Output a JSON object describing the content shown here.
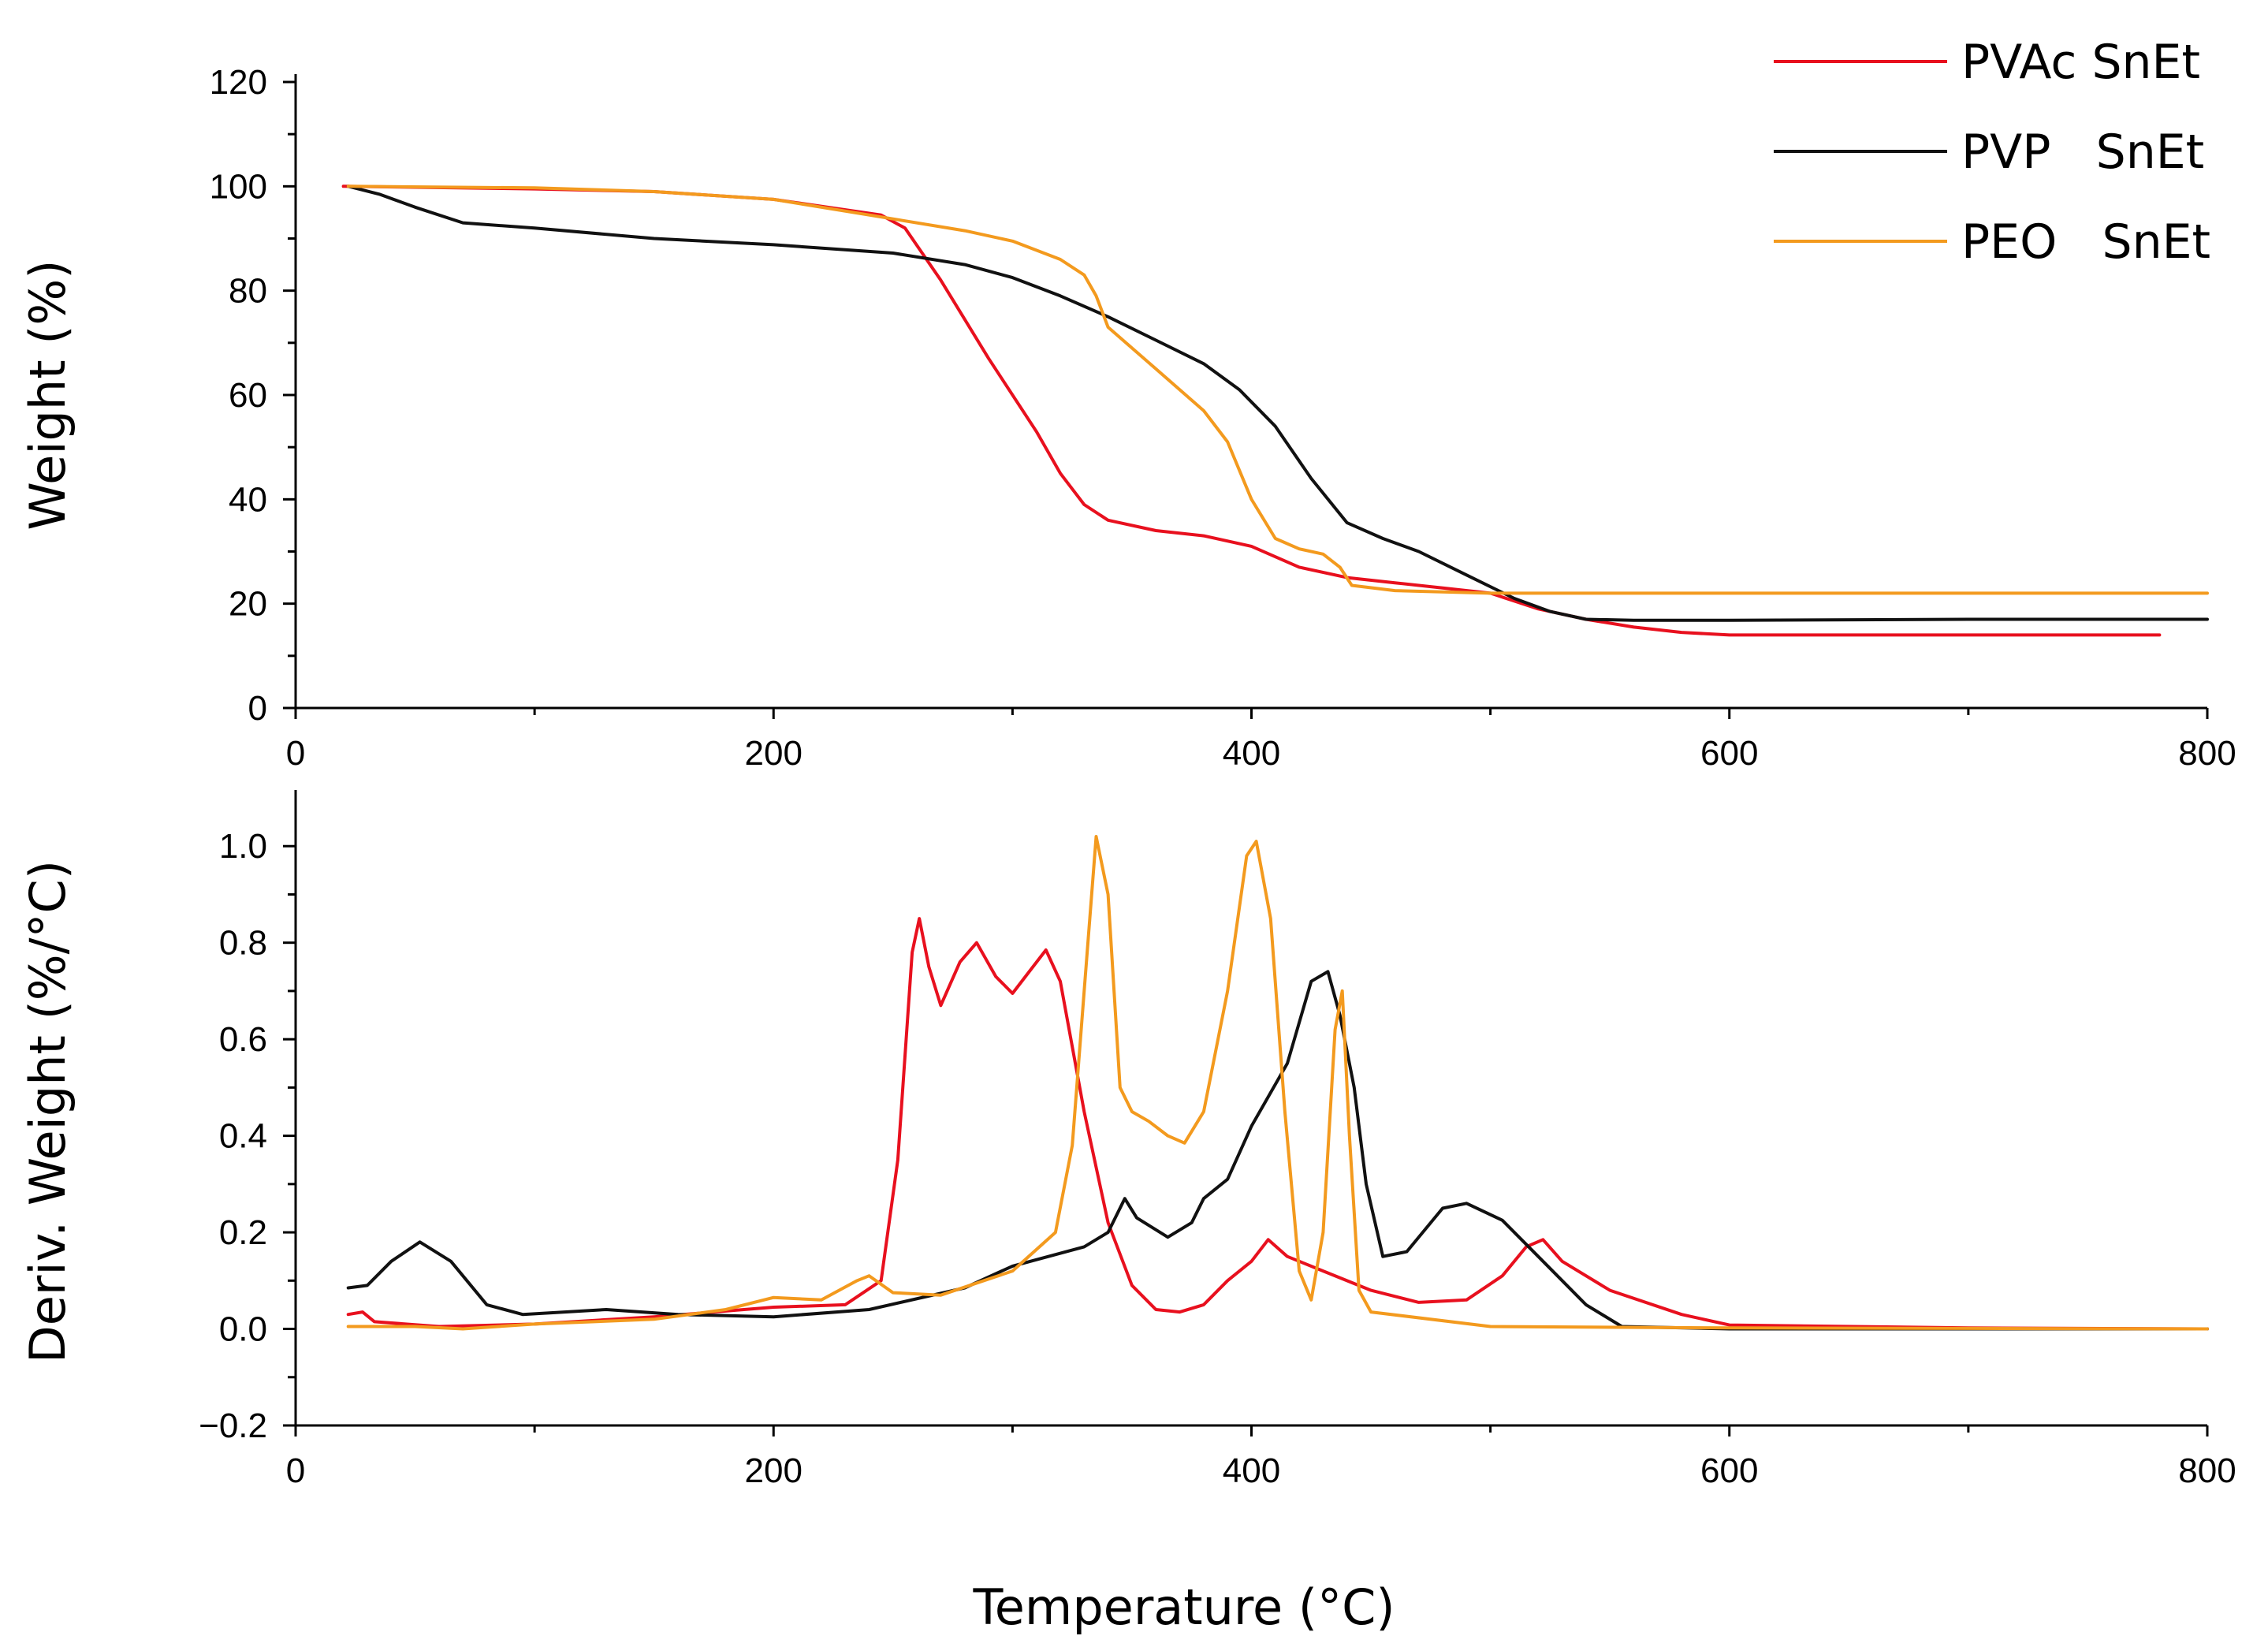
{
  "chart_data": {
    "type": "line",
    "xlabel": "Temperature (°C)",
    "legend": {
      "placement": "top-right",
      "entries": [
        {
          "label": "PVAc SnEt",
          "color": "#e8101e"
        },
        {
          "label": "PVP   SnEt",
          "color": "#111111"
        },
        {
          "label": "PEO   SnEt",
          "color": "#f39a1e"
        }
      ]
    },
    "panels": [
      {
        "ylabel": "Weight (%)",
        "xlim": [
          0,
          800
        ],
        "ylim": [
          0,
          120
        ],
        "xticks": [
          0,
          200,
          400,
          600,
          800
        ],
        "yticks": [
          0,
          20,
          40,
          60,
          80,
          100,
          120
        ],
        "ytick_labels": [
          "0",
          "20",
          "40",
          "60",
          "80",
          "100",
          "120"
        ],
        "series": [
          {
            "name": "PVAc SnEt",
            "color": "#e8101e",
            "points": [
              [
                20,
                100
              ],
              [
                100,
                99.5
              ],
              [
                150,
                99
              ],
              [
                200,
                97.5
              ],
              [
                245,
                94.5
              ],
              [
                255,
                92
              ],
              [
                270,
                82
              ],
              [
                290,
                67
              ],
              [
                310,
                53
              ],
              [
                320,
                45
              ],
              [
                330,
                39
              ],
              [
                340,
                36
              ],
              [
                360,
                34
              ],
              [
                380,
                33
              ],
              [
                400,
                31
              ],
              [
                420,
                27
              ],
              [
                440,
                25
              ],
              [
                460,
                24
              ],
              [
                480,
                23
              ],
              [
                500,
                22
              ],
              [
                520,
                19
              ],
              [
                540,
                17
              ],
              [
                560,
                15.5
              ],
              [
                580,
                14.5
              ],
              [
                600,
                14
              ],
              [
                700,
                14
              ],
              [
                780,
                14
              ]
            ]
          },
          {
            "name": "PVP   SnEt",
            "color": "#111111",
            "points": [
              [
                22,
                100
              ],
              [
                35,
                98.5
              ],
              [
                50,
                96
              ],
              [
                70,
                93
              ],
              [
                100,
                92
              ],
              [
                150,
                90
              ],
              [
                200,
                88.8
              ],
              [
                250,
                87.2
              ],
              [
                280,
                85
              ],
              [
                300,
                82.5
              ],
              [
                320,
                79
              ],
              [
                340,
                75
              ],
              [
                360,
                70.5
              ],
              [
                380,
                66
              ],
              [
                395,
                61
              ],
              [
                410,
                54
              ],
              [
                425,
                44
              ],
              [
                440,
                35.5
              ],
              [
                455,
                32.5
              ],
              [
                470,
                30
              ],
              [
                490,
                25.5
              ],
              [
                510,
                21
              ],
              [
                525,
                18.5
              ],
              [
                540,
                17
              ],
              [
                560,
                16.8
              ],
              [
                600,
                16.8
              ],
              [
                700,
                17
              ],
              [
                800,
                17
              ]
            ]
          },
          {
            "name": "PEO   SnEt",
            "color": "#f39a1e",
            "points": [
              [
                22,
                100
              ],
              [
                100,
                99.7
              ],
              [
                150,
                99
              ],
              [
                200,
                97.5
              ],
              [
                240,
                94.5
              ],
              [
                280,
                91.5
              ],
              [
                300,
                89.5
              ],
              [
                320,
                86
              ],
              [
                330,
                83
              ],
              [
                335,
                79
              ],
              [
                340,
                73
              ],
              [
                360,
                65
              ],
              [
                380,
                57
              ],
              [
                390,
                51
              ],
              [
                400,
                40
              ],
              [
                410,
                32.5
              ],
              [
                420,
                30.5
              ],
              [
                430,
                29.5
              ],
              [
                437,
                27
              ],
              [
                442,
                23.5
              ],
              [
                460,
                22.5
              ],
              [
                500,
                22
              ],
              [
                600,
                22
              ],
              [
                700,
                22
              ],
              [
                800,
                22
              ]
            ]
          }
        ]
      },
      {
        "ylabel": "Deriv. Weight (%/°C)",
        "xlim": [
          0,
          800
        ],
        "ylim": [
          -0.2,
          1.1
        ],
        "xticks": [
          0,
          200,
          400,
          600,
          800
        ],
        "yticks": [
          -0.2,
          0,
          0.2,
          0.4,
          0.6,
          0.8,
          1.0
        ],
        "ytick_labels": [
          "−0.2",
          "0.0",
          "0.2",
          "0.4",
          "0.6",
          "0.8",
          "1.0"
        ],
        "series": [
          {
            "name": "PVAc SnEt",
            "color": "#e8101e",
            "points": [
              [
                22,
                0.03
              ],
              [
                28,
                0.035
              ],
              [
                33,
                0.015
              ],
              [
                60,
                0.005
              ],
              [
                100,
                0.01
              ],
              [
                150,
                0.025
              ],
              [
                200,
                0.045
              ],
              [
                230,
                0.05
              ],
              [
                245,
                0.1
              ],
              [
                252,
                0.35
              ],
              [
                258,
                0.78
              ],
              [
                261,
                0.85
              ],
              [
                265,
                0.75
              ],
              [
                270,
                0.67
              ],
              [
                278,
                0.76
              ],
              [
                285,
                0.8
              ],
              [
                293,
                0.73
              ],
              [
                300,
                0.695
              ],
              [
                307,
                0.74
              ],
              [
                314,
                0.785
              ],
              [
                320,
                0.72
              ],
              [
                330,
                0.45
              ],
              [
                340,
                0.22
              ],
              [
                350,
                0.09
              ],
              [
                360,
                0.04
              ],
              [
                370,
                0.035
              ],
              [
                380,
                0.05
              ],
              [
                390,
                0.1
              ],
              [
                400,
                0.14
              ],
              [
                407,
                0.185
              ],
              [
                415,
                0.15
              ],
              [
                430,
                0.12
              ],
              [
                450,
                0.08
              ],
              [
                470,
                0.055
              ],
              [
                490,
                0.06
              ],
              [
                505,
                0.11
              ],
              [
                515,
                0.17
              ],
              [
                522,
                0.185
              ],
              [
                530,
                0.14
              ],
              [
                550,
                0.08
              ],
              [
                580,
                0.03
              ],
              [
                600,
                0.008
              ],
              [
                700,
                0.002
              ],
              [
                800,
                0
              ]
            ]
          },
          {
            "name": "PVP   SnEt",
            "color": "#111111",
            "points": [
              [
                22,
                0.085
              ],
              [
                30,
                0.09
              ],
              [
                40,
                0.14
              ],
              [
                52,
                0.18
              ],
              [
                65,
                0.14
              ],
              [
                80,
                0.05
              ],
              [
                95,
                0.03
              ],
              [
                130,
                0.04
              ],
              [
                160,
                0.03
              ],
              [
                200,
                0.025
              ],
              [
                240,
                0.04
              ],
              [
                280,
                0.085
              ],
              [
                300,
                0.13
              ],
              [
                330,
                0.17
              ],
              [
                340,
                0.2
              ],
              [
                347,
                0.27
              ],
              [
                352,
                0.23
              ],
              [
                365,
                0.19
              ],
              [
                375,
                0.22
              ],
              [
                380,
                0.27
              ],
              [
                390,
                0.31
              ],
              [
                400,
                0.42
              ],
              [
                415,
                0.55
              ],
              [
                425,
                0.72
              ],
              [
                432,
                0.74
              ],
              [
                437,
                0.65
              ],
              [
                443,
                0.5
              ],
              [
                448,
                0.3
              ],
              [
                455,
                0.15
              ],
              [
                465,
                0.16
              ],
              [
                480,
                0.25
              ],
              [
                490,
                0.26
              ],
              [
                505,
                0.225
              ],
              [
                520,
                0.15
              ],
              [
                540,
                0.05
              ],
              [
                555,
                0.005
              ],
              [
                600,
                0
              ],
              [
                800,
                0
              ]
            ]
          },
          {
            "name": "PEO   SnEt",
            "color": "#f39a1e",
            "points": [
              [
                22,
                0.005
              ],
              [
                50,
                0.005
              ],
              [
                70,
                0
              ],
              [
                100,
                0.01
              ],
              [
                150,
                0.02
              ],
              [
                180,
                0.04
              ],
              [
                200,
                0.065
              ],
              [
                220,
                0.06
              ],
              [
                235,
                0.1
              ],
              [
                240,
                0.11
              ],
              [
                250,
                0.075
              ],
              [
                270,
                0.07
              ],
              [
                300,
                0.12
              ],
              [
                318,
                0.2
              ],
              [
                325,
                0.38
              ],
              [
                330,
                0.7
              ],
              [
                335,
                1.02
              ],
              [
                340,
                0.9
              ],
              [
                345,
                0.5
              ],
              [
                350,
                0.45
              ],
              [
                357,
                0.43
              ],
              [
                365,
                0.4
              ],
              [
                372,
                0.385
              ],
              [
                380,
                0.45
              ],
              [
                390,
                0.7
              ],
              [
                398,
                0.98
              ],
              [
                402,
                1.01
              ],
              [
                408,
                0.85
              ],
              [
                414,
                0.45
              ],
              [
                420,
                0.12
              ],
              [
                425,
                0.06
              ],
              [
                430,
                0.2
              ],
              [
                435,
                0.62
              ],
              [
                438,
                0.7
              ],
              [
                441,
                0.4
              ],
              [
                445,
                0.08
              ],
              [
                450,
                0.035
              ],
              [
                500,
                0.005
              ],
              [
                600,
                0.002
              ],
              [
                700,
                0.001
              ],
              [
                800,
                0
              ]
            ]
          }
        ]
      }
    ]
  }
}
